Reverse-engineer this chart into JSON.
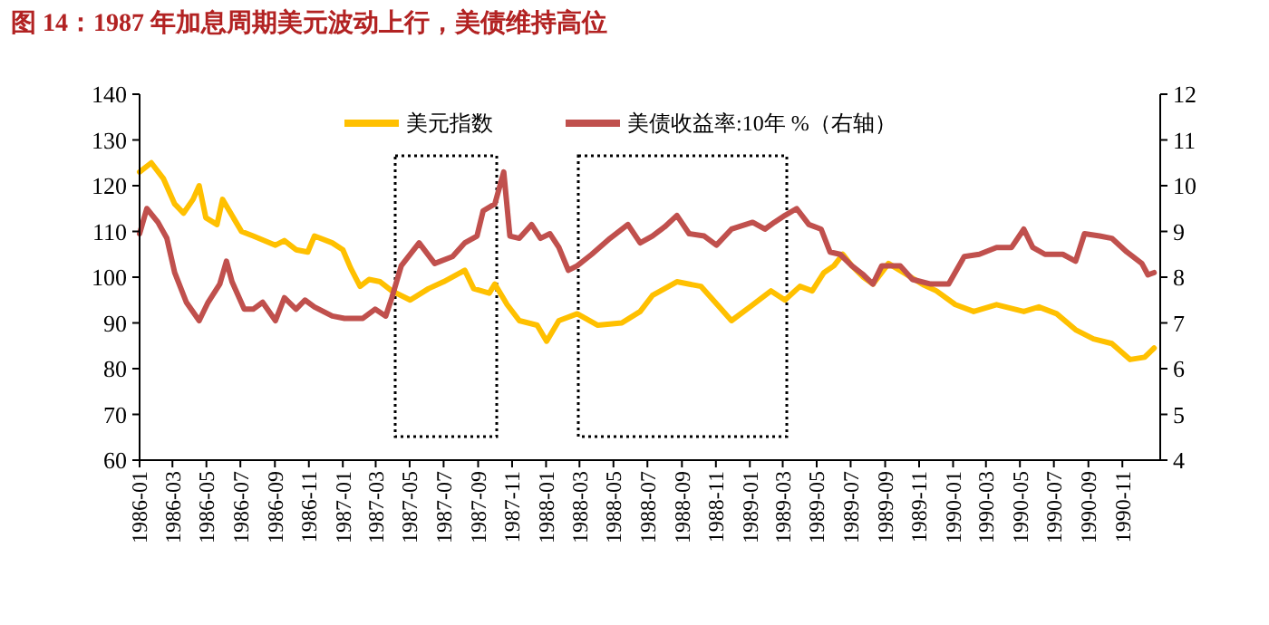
{
  "chart_data": {
    "type": "line",
    "title": "图 14：1987 年加息周期美元波动上行，美债维持高位",
    "xlim": [
      "1986-01-01",
      "1991-01-08"
    ],
    "xticks": [
      "1986-01",
      "1986-03",
      "1986-05",
      "1986-07",
      "1986-09",
      "1986-11",
      "1987-01",
      "1987-03",
      "1987-05",
      "1987-07",
      "1987-09",
      "1987-11",
      "1988-01",
      "1988-03",
      "1988-05",
      "1988-07",
      "1988-09",
      "1988-11",
      "1989-01",
      "1989-03",
      "1989-05",
      "1989-07",
      "1989-09",
      "1989-11",
      "1990-01",
      "1990-03",
      "1990-05",
      "1990-07",
      "1990-09",
      "1990-11"
    ],
    "ylim": [
      60,
      140
    ],
    "yticks": [
      60,
      70,
      80,
      90,
      100,
      110,
      120,
      130,
      140
    ],
    "y2lim": [
      4,
      12
    ],
    "y2ticks": [
      4,
      5,
      6,
      7,
      8,
      9,
      10,
      11,
      12
    ],
    "legend": "top",
    "line_style": "solid",
    "series": [
      {
        "name": "美元指数",
        "color": "#ffc000",
        "x": [
          "1986-01-01",
          "1986-01-22",
          "1986-02-13",
          "1986-03-05",
          "1986-03-21",
          "1986-04-07",
          "1986-04-18",
          "1986-04-30",
          "1986-05-20",
          "1986-05-30",
          "1986-06-16",
          "1986-07-03",
          "1986-07-24",
          "1986-09-02",
          "1986-09-18",
          "1986-10-09",
          "1986-10-30",
          "1986-11-11",
          "1986-12-13",
          "1987-01-01",
          "1987-01-15",
          "1987-02-01",
          "1987-02-17",
          "1987-03-09",
          "1987-03-30",
          "1987-05-02",
          "1987-06-04",
          "1987-07-01",
          "1987-08-08",
          "1987-08-24",
          "1987-09-21",
          "1987-10-01",
          "1987-10-23",
          "1987-11-14",
          "1987-12-16",
          "1988-01-02",
          "1988-01-24",
          "1988-02-26",
          "1988-04-03",
          "1988-05-16",
          "1988-06-18",
          "1988-07-10",
          "1988-08-23",
          "1988-10-05",
          "1988-11-07",
          "1988-11-29",
          "1989-01-01",
          "1989-02-08",
          "1989-03-05",
          "1989-04-01",
          "1989-04-23",
          "1989-05-14",
          "1989-06-01",
          "1989-06-17",
          "1989-07-03",
          "1989-07-24",
          "1989-08-10",
          "1989-09-07",
          "1989-10-04",
          "1989-11-06",
          "1989-12-02",
          "1990-01-05",
          "1990-02-07",
          "1990-03-20",
          "1990-05-08",
          "1990-06-04",
          "1990-07-06",
          "1990-08-09",
          "1990-09-10",
          "1990-10-13",
          "1990-11-15",
          "1990-12-11",
          "1990-12-28"
        ],
        "values": [
          123,
          125,
          121.5,
          116,
          114,
          117,
          120,
          113,
          111.5,
          117,
          113.5,
          110,
          109,
          107,
          108,
          106,
          105.5,
          109,
          107.5,
          106,
          102,
          98,
          99.5,
          99,
          97,
          95,
          97.5,
          99,
          101.5,
          97.5,
          96.5,
          98.5,
          94,
          90.5,
          89.5,
          86,
          90.5,
          92,
          89.5,
          90,
          92.5,
          96,
          99,
          98,
          93.5,
          90.5,
          93.5,
          97,
          95,
          98,
          97,
          101,
          102.5,
          105,
          102.5,
          100,
          98.5,
          103,
          101,
          98.5,
          97,
          94,
          92.5,
          94,
          92.5,
          93.5,
          92,
          88.5,
          86.5,
          85.5,
          82,
          82.5,
          84.5
        ]
      },
      {
        "name": "美债收益率:10年 %（右轴）",
        "color": "#c0504d",
        "axis": "y2",
        "x": [
          "1986-01-01",
          "1986-01-14",
          "1986-02-03",
          "1986-02-19",
          "1986-03-05",
          "1986-03-26",
          "1986-04-18",
          "1986-05-04",
          "1986-05-25",
          "1986-06-06",
          "1986-06-16",
          "1986-07-08",
          "1986-07-24",
          "1986-08-10",
          "1986-09-02",
          "1986-09-18",
          "1986-10-09",
          "1986-10-25",
          "1986-11-11",
          "1986-12-13",
          "1987-01-04",
          "1987-02-06",
          "1987-02-28",
          "1987-03-19",
          "1987-03-30",
          "1987-04-16",
          "1987-05-18",
          "1987-06-15",
          "1987-07-17",
          "1987-08-08",
          "1987-08-30",
          "1987-09-10",
          "1987-10-01",
          "1987-10-17",
          "1987-10-28",
          "1987-11-14",
          "1987-12-06",
          "1987-12-22",
          "1988-01-08",
          "1988-01-24",
          "1988-02-10",
          "1988-02-26",
          "1988-03-23",
          "1988-04-25",
          "1988-05-27",
          "1988-06-18",
          "1988-07-10",
          "1988-08-01",
          "1988-08-23",
          "1988-09-14",
          "1988-10-11",
          "1988-11-02",
          "1988-11-29",
          "1989-01-06",
          "1989-01-28",
          "1989-02-14",
          "1989-03-05",
          "1989-03-26",
          "1989-04-17",
          "1989-05-09",
          "1989-05-25",
          "1989-06-12",
          "1989-07-03",
          "1989-07-24",
          "1989-08-10",
          "1989-08-26",
          "1989-09-28",
          "1989-10-20",
          "1989-11-22",
          "1989-12-24",
          "1990-01-21",
          "1990-02-17",
          "1990-03-20",
          "1990-04-16",
          "1990-05-08",
          "1990-05-24",
          "1990-06-15",
          "1990-07-17",
          "1990-08-09",
          "1990-08-25",
          "1990-09-21",
          "1990-10-13",
          "1990-11-09",
          "1990-12-06",
          "1990-12-17",
          "1990-12-28"
        ],
        "values": [
          8.95,
          9.5,
          9.2,
          8.85,
          8.1,
          7.45,
          7.05,
          7.45,
          7.85,
          8.35,
          7.9,
          7.3,
          7.3,
          7.45,
          7.05,
          7.55,
          7.3,
          7.5,
          7.35,
          7.15,
          7.1,
          7.1,
          7.3,
          7.15,
          7.55,
          8.25,
          8.75,
          8.3,
          8.45,
          8.75,
          8.9,
          9.45,
          9.6,
          10.3,
          8.9,
          8.85,
          9.15,
          8.85,
          8.95,
          8.65,
          8.15,
          8.25,
          8.5,
          8.85,
          9.15,
          8.75,
          8.9,
          9.1,
          9.35,
          8.95,
          8.9,
          8.7,
          9.05,
          9.2,
          9.05,
          9.2,
          9.35,
          9.5,
          9.15,
          9.05,
          8.55,
          8.5,
          8.25,
          8.05,
          7.85,
          8.25,
          8.25,
          7.95,
          7.85,
          7.85,
          8.45,
          8.5,
          8.65,
          8.65,
          9.05,
          8.65,
          8.5,
          8.5,
          8.35,
          8.95,
          8.9,
          8.85,
          8.55,
          8.3,
          8.05,
          8.1
        ]
      }
    ]
  }
}
